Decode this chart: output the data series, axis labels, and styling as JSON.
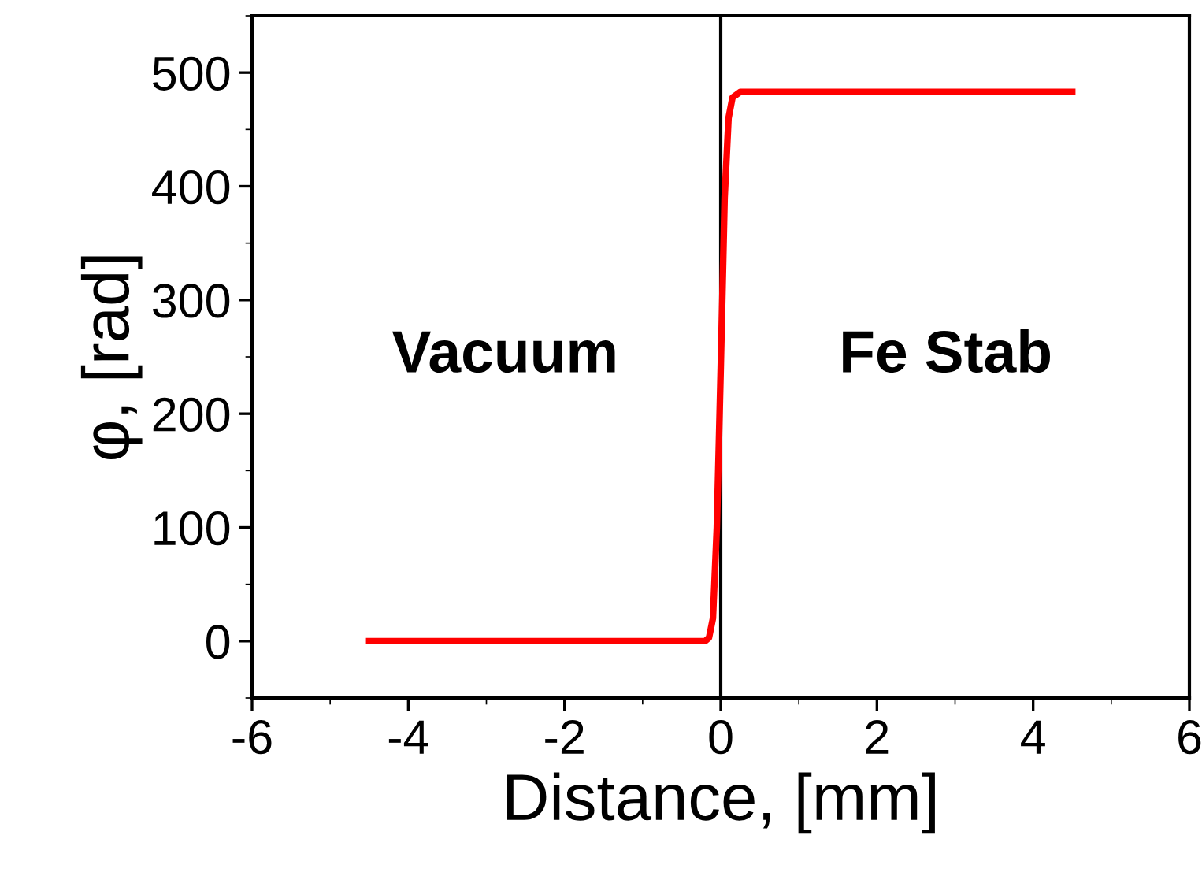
{
  "chart_data": {
    "type": "line",
    "xlabel": "Distance, [mm]",
    "ylabel": "φ, [rad]",
    "x": [
      -4.5,
      -0.2,
      -0.15,
      -0.1,
      -0.05,
      0,
      0.05,
      0.1,
      0.15,
      0.25,
      4.5
    ],
    "series": [
      {
        "color": "#ff0000",
        "values": [
          0,
          0,
          3,
          20,
          100,
          240,
          390,
          460,
          478,
          483,
          483
        ]
      }
    ],
    "xlim": [
      -6,
      6
    ],
    "xticks": [
      -6,
      -4,
      -2,
      0,
      2,
      4,
      6
    ],
    "ylim": [
      -50,
      550
    ],
    "yticks": [
      0,
      100,
      200,
      300,
      400,
      500
    ],
    "ref_lines": [
      {
        "axis": "x",
        "value": 0,
        "color": "#000000"
      }
    ],
    "annotations": [
      "Vacuum",
      "Fe Stab"
    ],
    "grid": false,
    "legend": false,
    "marker": "none",
    "line_style": "solid"
  }
}
